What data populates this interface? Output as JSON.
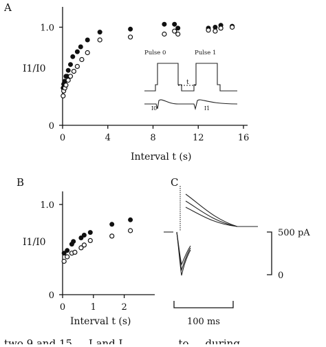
{
  "panels": {
    "a_label": "A",
    "b_label": "B",
    "c_label": "C"
  },
  "inset": {
    "pulse0_label": "Pulse 0",
    "pulse1_label": "Pulse 1",
    "interval_label": "t",
    "i0_label": "I0",
    "i1_label": "I1"
  },
  "scale": {
    "current_label": "500 pA",
    "zero_label": "0",
    "time_label": "100 ms"
  },
  "caption_fragment": "two 9 and 15 ... I and I ... ... ... ... to ... during",
  "chart_data": [
    {
      "type": "scatter",
      "panel": "A",
      "title": "",
      "xlabel": "Interval t (s)",
      "ylabel": "I1/I0",
      "xlim": [
        0,
        16
      ],
      "ylim": [
        0,
        1.2
      ],
      "xticks": [
        0,
        4,
        8,
        12,
        16
      ],
      "xtick_labels": [
        "0",
        "4",
        "8",
        "12",
        "16"
      ],
      "yticks": [
        0,
        1.0
      ],
      "ytick_labels": [
        "0",
        "1.0"
      ],
      "grid": false,
      "series": [
        {
          "marker": "filled-circle",
          "points": [
            [
              0.05,
              0.38
            ],
            [
              0.1,
              0.42
            ],
            [
              0.2,
              0.45
            ],
            [
              0.3,
              0.5
            ],
            [
              0.4,
              0.5
            ],
            [
              0.5,
              0.56
            ],
            [
              0.7,
              0.62
            ],
            [
              0.9,
              0.7
            ],
            [
              1.3,
              0.75
            ],
            [
              1.6,
              0.8
            ],
            [
              2.2,
              0.87
            ],
            [
              3.3,
              0.95
            ],
            [
              6,
              0.98
            ],
            [
              9,
              1.03
            ],
            [
              9.9,
              1.03
            ],
            [
              10.2,
              0.99
            ],
            [
              12.9,
              0.99
            ],
            [
              13.5,
              1.0
            ],
            [
              14,
              1.02
            ],
            [
              15,
              1.01
            ]
          ]
        },
        {
          "marker": "open-circle",
          "points": [
            [
              0.05,
              0.3
            ],
            [
              0.1,
              0.35
            ],
            [
              0.2,
              0.38
            ],
            [
              0.3,
              0.41
            ],
            [
              0.5,
              0.46
            ],
            [
              0.7,
              0.5
            ],
            [
              1.0,
              0.55
            ],
            [
              1.3,
              0.6
            ],
            [
              1.7,
              0.67
            ],
            [
              2.2,
              0.74
            ],
            [
              3.3,
              0.87
            ],
            [
              6,
              0.9
            ],
            [
              9,
              0.93
            ],
            [
              9.9,
              0.96
            ],
            [
              10.2,
              0.93
            ],
            [
              12.9,
              0.97
            ],
            [
              13.5,
              0.96
            ],
            [
              14,
              0.99
            ],
            [
              15,
              1.0
            ]
          ]
        }
      ]
    },
    {
      "type": "scatter",
      "panel": "B",
      "title": "",
      "xlabel": "Interval t (s)",
      "ylabel": "I1/I0",
      "xlim": [
        0,
        2.5
      ],
      "ylim": [
        0,
        1.2
      ],
      "xticks": [
        0,
        1,
        2
      ],
      "xtick_labels": [
        "0",
        "1",
        "2"
      ],
      "yticks": [
        0,
        1.0
      ],
      "ytick_labels": [
        "0",
        "1.0"
      ],
      "grid": false,
      "series": [
        {
          "marker": "filled-circle",
          "points": [
            [
              0.05,
              0.46
            ],
            [
              0.15,
              0.49
            ],
            [
              0.3,
              0.56
            ],
            [
              0.35,
              0.59
            ],
            [
              0.6,
              0.63
            ],
            [
              0.7,
              0.66
            ],
            [
              0.9,
              0.69
            ],
            [
              1.6,
              0.78
            ],
            [
              2.2,
              0.83
            ]
          ]
        },
        {
          "marker": "open-circle",
          "points": [
            [
              0.05,
              0.37
            ],
            [
              0.15,
              0.42
            ],
            [
              0.3,
              0.46
            ],
            [
              0.4,
              0.47
            ],
            [
              0.6,
              0.52
            ],
            [
              0.7,
              0.55
            ],
            [
              0.9,
              0.6
            ],
            [
              1.6,
              0.65
            ],
            [
              2.2,
              0.71
            ]
          ]
        }
      ]
    }
  ]
}
